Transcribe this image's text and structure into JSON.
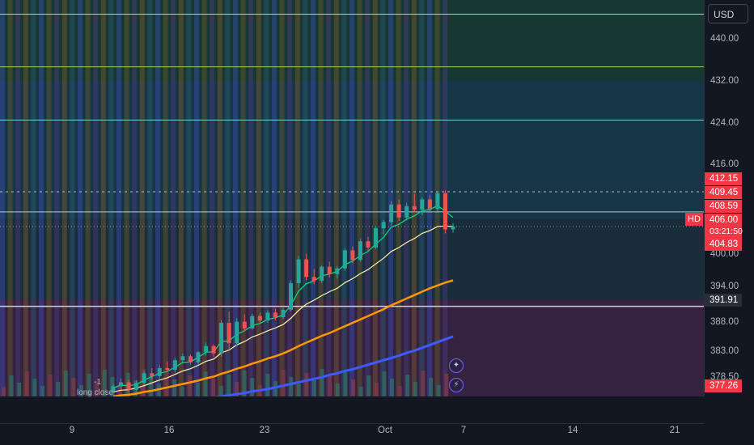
{
  "symbol": "HD",
  "currency": "USD",
  "price_axis": {
    "ticks": [
      "440.00",
      "432.00",
      "424.00",
      "416.00",
      "400.00",
      "394.00",
      "388.00",
      "383.00",
      "378.50"
    ],
    "tags": {
      "high_level": "412.15",
      "level_2": "409.45",
      "level_3": "408.59",
      "last_price": "406.00",
      "countdown": "03:21:50",
      "low_level": "404.83",
      "support": "391.91",
      "bottom": "377.26"
    }
  },
  "time_axis": {
    "labels": [
      "9",
      "16",
      "23",
      "Oct",
      "7",
      "14",
      "21"
    ]
  },
  "annotations": {
    "signal_count": "-1",
    "signal_text": "long close"
  },
  "icons": [
    "sparkle-icon",
    "lightning-icon"
  ],
  "chart_data": {
    "type": "candlestick",
    "ylim": [
      376,
      446
    ],
    "colors": {
      "up": "#26a69a",
      "down": "#ef5350",
      "ma_fast": "#00e676",
      "ma_mid": "#fff59d",
      "ma_slow": "#ff9800",
      "ma_long": "#3d5afe"
    },
    "levels": [
      443.5,
      434.2,
      424.8,
      412.15,
      408.59,
      391.91
    ],
    "candles": [
      [
        377.0,
        378.2,
        376.5,
        377.8
      ],
      [
        377.8,
        379.2,
        377.2,
        378.5
      ],
      [
        378.5,
        379.0,
        376.8,
        377.2
      ],
      [
        377.2,
        378.8,
        376.9,
        378.4
      ],
      [
        378.4,
        380.5,
        378.0,
        380.1
      ],
      [
        380.1,
        381.0,
        379.0,
        379.6
      ],
      [
        379.6,
        381.5,
        379.2,
        381.0
      ],
      [
        381.0,
        382.2,
        380.3,
        380.7
      ],
      [
        380.7,
        382.8,
        380.2,
        382.4
      ],
      [
        382.4,
        383.6,
        381.8,
        383.1
      ],
      [
        383.1,
        383.4,
        381.6,
        382.0
      ],
      [
        382.0,
        384.0,
        381.7,
        383.8
      ],
      [
        383.8,
        385.5,
        383.2,
        384.9
      ],
      [
        384.9,
        385.2,
        383.0,
        383.6
      ],
      [
        383.6,
        389.5,
        383.0,
        389.0
      ],
      [
        389.0,
        391.0,
        384.0,
        385.4
      ],
      [
        385.4,
        389.8,
        385.0,
        389.2
      ],
      [
        389.2,
        390.5,
        387.5,
        388.0
      ],
      [
        388.0,
        390.6,
        387.8,
        390.2
      ],
      [
        390.2,
        390.8,
        388.9,
        389.4
      ],
      [
        389.4,
        391.2,
        389.0,
        390.8
      ],
      [
        390.8,
        391.5,
        389.5,
        390.0
      ],
      [
        390.0,
        391.6,
        389.7,
        391.3
      ],
      [
        391.3,
        396.5,
        391.0,
        396.0
      ],
      [
        396.0,
        400.8,
        395.2,
        400.2
      ],
      [
        400.2,
        401.2,
        396.5,
        397.1
      ],
      [
        397.1,
        398.5,
        395.8,
        396.4
      ],
      [
        396.4,
        399.2,
        396.0,
        398.9
      ],
      [
        398.9,
        399.8,
        397.0,
        397.6
      ],
      [
        397.6,
        399.0,
        396.8,
        398.6
      ],
      [
        398.6,
        402.2,
        398.2,
        401.8
      ],
      [
        401.8,
        402.5,
        399.5,
        400.1
      ],
      [
        400.1,
        403.8,
        399.8,
        403.4
      ],
      [
        403.4,
        404.2,
        401.6,
        402.3
      ],
      [
        402.3,
        406.1,
        402.0,
        405.7
      ],
      [
        405.7,
        407.2,
        404.6,
        406.8
      ],
      [
        406.8,
        410.5,
        406.2,
        409.9
      ],
      [
        409.9,
        410.8,
        407.0,
        407.6
      ],
      [
        407.6,
        410.2,
        407.1,
        409.6
      ],
      [
        409.6,
        411.8,
        408.5,
        409.0
      ],
      [
        409.0,
        411.2,
        408.0,
        410.8
      ],
      [
        410.8,
        411.5,
        408.6,
        409.1
      ],
      [
        409.1,
        412.3,
        408.7,
        411.9
      ],
      [
        411.9,
        412.4,
        404.8,
        405.5
      ],
      [
        405.5,
        406.6,
        404.9,
        406.0
      ]
    ],
    "ma_fast": [
      377.5,
      378.0,
      377.9,
      378.1,
      378.9,
      379.5,
      380.1,
      380.4,
      381.2,
      382.0,
      382.1,
      382.9,
      383.8,
      383.9,
      385.7,
      385.8,
      387.0,
      387.6,
      388.5,
      388.9,
      389.6,
      389.9,
      390.4,
      392.1,
      394.6,
      395.9,
      396.4,
      397.3,
      397.6,
      398.1,
      399.3,
      399.9,
      400.9,
      401.6,
      402.9,
      404.1,
      405.9,
      406.4,
      407.3,
      407.9,
      408.8,
      409.0,
      409.7,
      408.7,
      407.6
    ],
    "ma_mid": [
      376.8,
      377.1,
      377.2,
      377.5,
      377.9,
      378.4,
      378.9,
      379.3,
      379.9,
      380.5,
      380.9,
      381.5,
      382.2,
      382.6,
      383.7,
      384.2,
      385.1,
      385.7,
      386.5,
      387.0,
      387.6,
      388.1,
      388.7,
      389.8,
      391.2,
      392.3,
      393.0,
      393.8,
      394.5,
      395.1,
      396.1,
      396.8,
      397.7,
      398.4,
      399.4,
      400.4,
      401.6,
      402.3,
      403.2,
      403.9,
      404.8,
      405.3,
      406.0,
      406.1,
      406.0
    ],
    "ma_slow": [
      376.0,
      376.2,
      376.3,
      376.5,
      376.8,
      377.0,
      377.3,
      377.6,
      377.9,
      378.2,
      378.5,
      378.8,
      379.2,
      379.5,
      380.0,
      380.4,
      380.9,
      381.3,
      381.8,
      382.2,
      382.7,
      383.1,
      383.6,
      384.2,
      384.9,
      385.5,
      386.1,
      386.7,
      387.2,
      387.8,
      388.4,
      389.0,
      389.6,
      390.2,
      390.8,
      391.4,
      392.1,
      392.7,
      393.3,
      393.9,
      394.5,
      395.1,
      395.6,
      396.1,
      396.5
    ],
    "ma_long": [
      374.0,
      374.1,
      374.2,
      374.3,
      374.4,
      374.5,
      374.7,
      374.8,
      375.0,
      375.1,
      375.3,
      375.4,
      375.6,
      375.8,
      376.0,
      376.2,
      376.4,
      376.6,
      376.9,
      377.1,
      377.3,
      377.6,
      377.9,
      378.2,
      378.5,
      378.8,
      379.1,
      379.4,
      379.8,
      380.1,
      380.5,
      380.8,
      381.2,
      381.6,
      382.0,
      382.4,
      382.8,
      383.2,
      383.7,
      384.1,
      384.6,
      385.1,
      385.6,
      386.1,
      386.6
    ]
  }
}
